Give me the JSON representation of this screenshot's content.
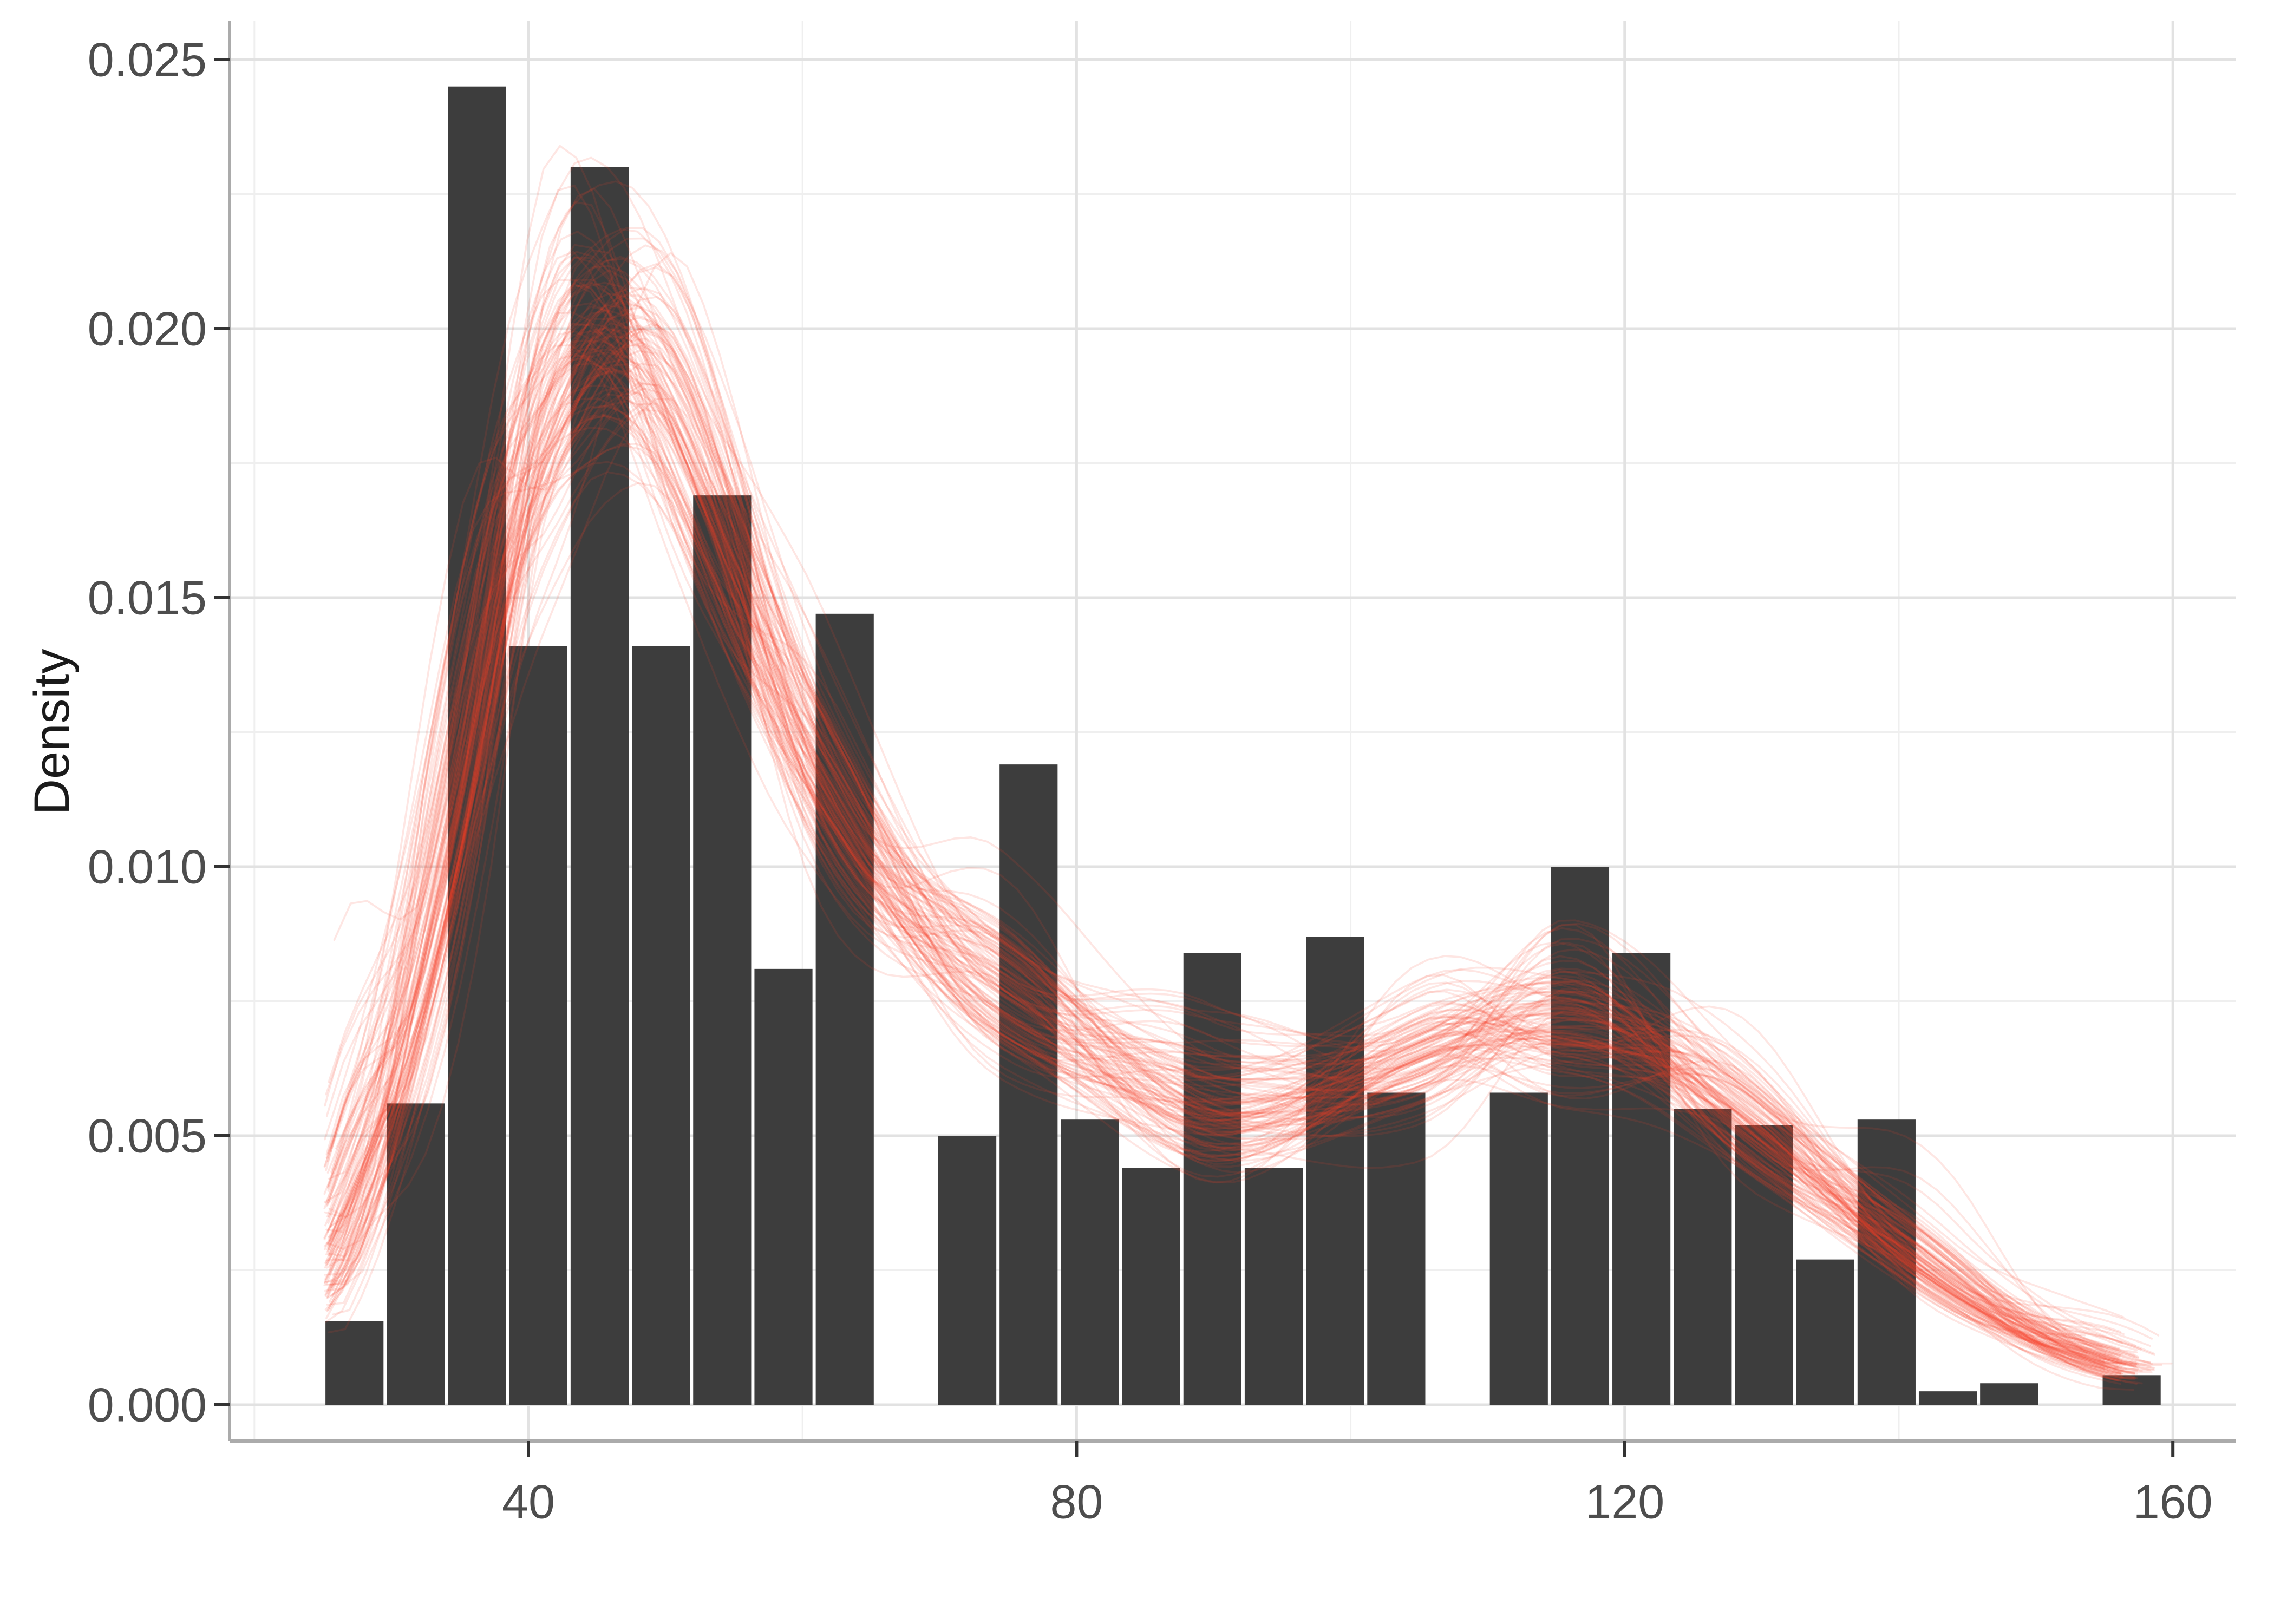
{
  "chart_data": {
    "type": "bar",
    "subtype": "histogram-with-posterior-density-overlay",
    "title": "",
    "xlabel": "",
    "ylabel": "Density",
    "grid": "on",
    "legend": "none",
    "x_axis": {
      "ticks": [
        40,
        80,
        120,
        160
      ],
      "tick_labels": [
        "40",
        "80",
        "120",
        "160"
      ],
      "minor_gridlines": [
        20,
        60,
        100,
        140
      ],
      "range": [
        18.2,
        164.6
      ]
    },
    "y_axis": {
      "ticks": [
        0,
        0.005,
        0.01,
        0.015,
        0.02,
        0.025
      ],
      "tick_labels": [
        "0.000",
        "0.005",
        "0.010",
        "0.015",
        "0.020",
        "0.025"
      ],
      "minor_gridlines": [
        0.0025,
        0.0075,
        0.0125,
        0.0175,
        0.0225
      ],
      "range": [
        -0.00068,
        0.0257
      ]
    },
    "histogram": {
      "bin_start": 25.07,
      "binwidth": 4.472,
      "n_bins": 30,
      "densities": [
        0.00155,
        0.0056,
        0.0245,
        0.0141,
        0.023,
        0.0141,
        0.0169,
        0.0081,
        0.0147,
        0,
        0.005,
        0.0119,
        0.0053,
        0.0044,
        0.0084,
        0.0044,
        0.0087,
        0.0058,
        0,
        0.0058,
        0.01,
        0.0084,
        0.0055,
        0.0052,
        0.0027,
        0.0053,
        0.00025,
        0.0004,
        0,
        0.00055
      ]
    },
    "overlay_curves": {
      "description": "posterior predictive density draws (spaghetti)",
      "n_draws": 110,
      "seed": 42,
      "x_range": [
        25.1,
        157.2
      ],
      "base_curve": {
        "x": [
          25,
          30,
          35,
          39,
          43,
          46,
          49,
          53,
          57,
          61,
          66,
          71,
          76,
          81,
          86,
          90,
          95,
          100,
          105,
          110,
          114,
          118,
          122,
          126,
          131,
          136,
          141,
          146,
          151,
          157
        ],
        "y": [
          0.0026,
          0.0062,
          0.0118,
          0.0168,
          0.0194,
          0.0198,
          0.0191,
          0.0169,
          0.0141,
          0.0117,
          0.0097,
          0.0084,
          0.0075,
          0.0066,
          0.0058,
          0.0054,
          0.0055,
          0.0059,
          0.0064,
          0.0069,
          0.0071,
          0.007,
          0.0066,
          0.0059,
          0.0049,
          0.0038,
          0.0028,
          0.0019,
          0.0012,
          0.0007
        ]
      },
      "noise_knots": {
        "x": [
          25,
          33,
          42,
          52,
          63,
          75,
          90,
          105,
          116,
          130,
          144,
          158
        ],
        "sd": [
          0.3,
          0.14,
          0.07,
          0.07,
          0.08,
          0.1,
          0.14,
          0.1,
          0.1,
          0.12,
          0.16,
          0.3
        ]
      },
      "x_jitter_sd": 1.1,
      "amplitude_sd": 0.025
    },
    "colors": {
      "bar_fill": "#3D3D3D",
      "curve_stroke": "#F83C28",
      "curve_alpha": 0.13,
      "gridline_major": "#E2E2E2",
      "gridline_minor": "#EFEFEF",
      "axis_line": "#ABABAB",
      "tick_mark": "#333333",
      "tick_label": "#4D4D4D",
      "axis_title": "#1A1A1A",
      "background": "#FFFFFF"
    }
  }
}
